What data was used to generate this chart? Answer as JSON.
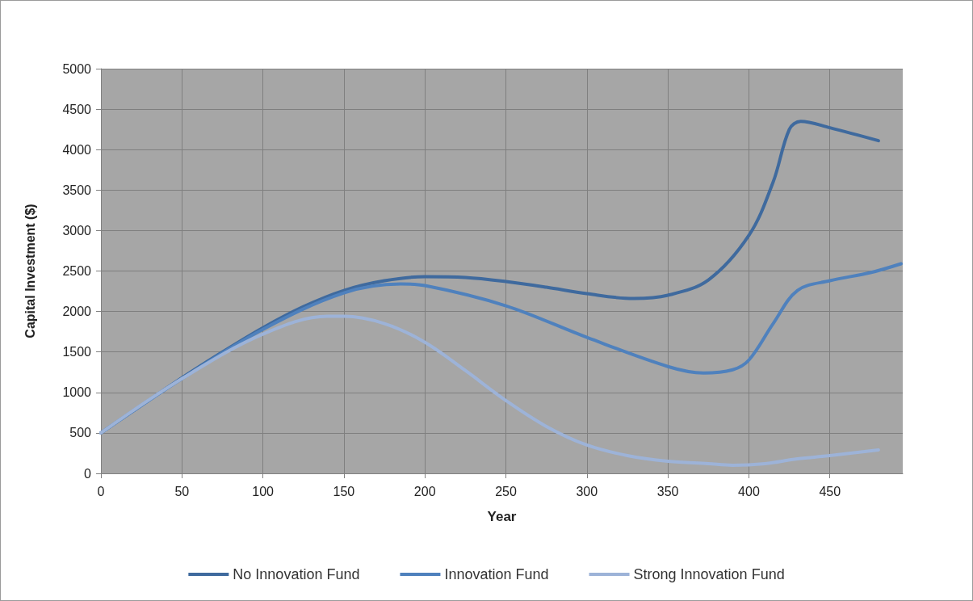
{
  "chart_data": {
    "type": "line",
    "xlabel": "Year",
    "ylabel": "Capital Investment ($)",
    "xlim": [
      0,
      495
    ],
    "xticks": [
      0,
      50,
      100,
      150,
      200,
      250,
      300,
      350,
      400,
      450
    ],
    "ylim": [
      0,
      5000
    ],
    "yticks": [
      0,
      500,
      1000,
      1500,
      2000,
      2500,
      3000,
      3500,
      4000,
      4500,
      5000
    ],
    "grid": true,
    "legend": "bottom",
    "marker": "none",
    "line_style": "solid",
    "series": [
      {
        "name": "No Innovation Fund",
        "color": "#3f6a9e",
        "x": [
          0,
          25,
          50,
          75,
          100,
          125,
          150,
          175,
          200,
          225,
          250,
          275,
          300,
          329,
          350,
          375,
          400,
          415,
          425,
          432,
          450,
          480
        ],
        "values": [
          500,
          840,
          1180,
          1500,
          1800,
          2060,
          2260,
          2380,
          2430,
          2420,
          2370,
          2300,
          2220,
          2160,
          2200,
          2390,
          2940,
          3600,
          4250,
          4350,
          4270,
          4110
        ]
      },
      {
        "name": "Innovation Fund",
        "color": "#4f81bd",
        "x": [
          0,
          50,
          100,
          150,
          185,
          200,
          250,
          300,
          350,
          372,
          390,
          400,
          415,
          430,
          450,
          475,
          494
        ],
        "values": [
          500,
          1170,
          1780,
          2230,
          2340,
          2320,
          2070,
          1680,
          1320,
          1240,
          1280,
          1400,
          1850,
          2260,
          2380,
          2480,
          2590
        ]
      },
      {
        "name": "Strong Innovation Fund",
        "color": "#9db3d8",
        "x": [
          0,
          50,
          100,
          140,
          150,
          175,
          200,
          225,
          250,
          275,
          300,
          325,
          350,
          375,
          390,
          410,
          430,
          450,
          480
        ],
        "values": [
          500,
          1170,
          1720,
          1940,
          1940,
          1850,
          1620,
          1270,
          900,
          580,
          350,
          220,
          150,
          120,
          100,
          120,
          180,
          220,
          290
        ]
      }
    ]
  }
}
